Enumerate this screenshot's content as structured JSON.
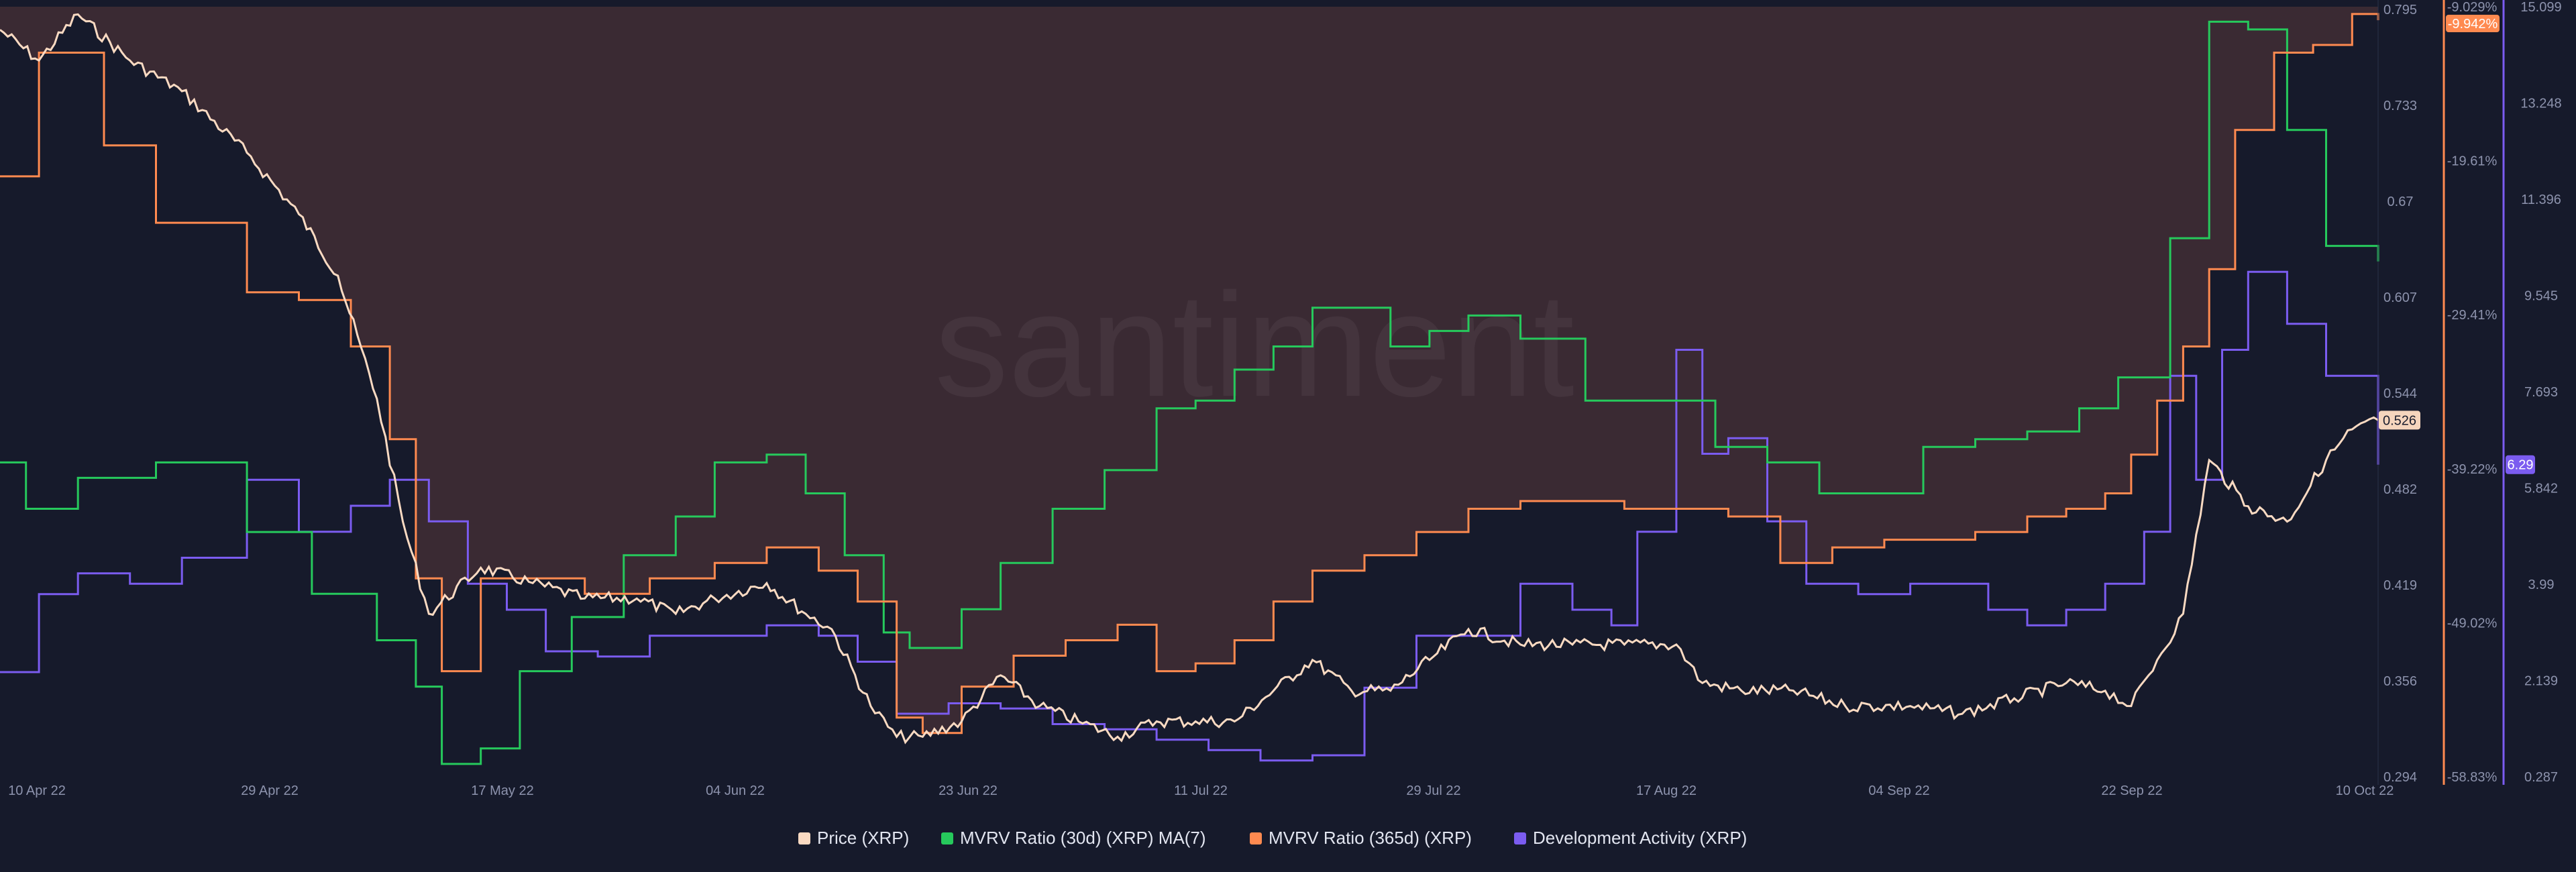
{
  "chart_data": {
    "type": "line",
    "watermark": "santiment",
    "x_dates": [
      "10 Apr 22",
      "29 Apr 22",
      "17 May 22",
      "04 Jun 22",
      "23 Jun 22",
      "11 Jul 22",
      "29 Jul 22",
      "17 Aug 22",
      "04 Sep 22",
      "22 Sep 22",
      "10 Oct 22"
    ],
    "axes": {
      "price": {
        "ticks": [
          "0.795",
          "0.733",
          "0.67",
          "0.607",
          "0.544",
          "0.482",
          "0.419",
          "0.356",
          "0.294"
        ],
        "range": [
          0.294,
          0.795
        ],
        "current": "0.526",
        "color": "#f5d5bd"
      },
      "mvrv": {
        "ticks": [
          "-9.029%",
          "-19.61%",
          "-29.41%",
          "-39.22%",
          "-49.02%",
          "-58.83%"
        ],
        "range": [
          -58.83,
          -9.029
        ],
        "current": "-9.942%",
        "color": "#ff8a50"
      },
      "dev": {
        "ticks": [
          "15.099",
          "13.248",
          "11.396",
          "9.545",
          "7.693",
          "5.842",
          "3.99",
          "2.139",
          "0.287"
        ],
        "range": [
          0.287,
          15.099
        ],
        "current": "6.29",
        "color": "#7b5cf0"
      }
    },
    "series": [
      {
        "name": "Price (XRP)",
        "color": "#fadac2",
        "axis": "price",
        "x": [
          "2022-04-10",
          "2022-04-13",
          "2022-04-16",
          "2022-04-20",
          "2022-04-24",
          "2022-04-29",
          "2022-05-03",
          "2022-05-06",
          "2022-05-09",
          "2022-05-11",
          "2022-05-13",
          "2022-05-17",
          "2022-05-21",
          "2022-05-25",
          "2022-05-29",
          "2022-06-01",
          "2022-06-04",
          "2022-06-08",
          "2022-06-11",
          "2022-06-13",
          "2022-06-16",
          "2022-06-18",
          "2022-06-20",
          "2022-06-23",
          "2022-06-26",
          "2022-06-29",
          "2022-07-02",
          "2022-07-05",
          "2022-07-08",
          "2022-07-11",
          "2022-07-14",
          "2022-07-17",
          "2022-07-20",
          "2022-07-23",
          "2022-07-26",
          "2022-07-29",
          "2022-08-01",
          "2022-08-05",
          "2022-08-09",
          "2022-08-13",
          "2022-08-17",
          "2022-08-19",
          "2022-08-22",
          "2022-08-26",
          "2022-08-30",
          "2022-09-04",
          "2022-09-08",
          "2022-09-12",
          "2022-09-16",
          "2022-09-19",
          "2022-09-21",
          "2022-09-23",
          "2022-09-25",
          "2022-09-27",
          "2022-09-30",
          "2022-10-03",
          "2022-10-06",
          "2022-10-08",
          "2022-10-10"
        ],
        "y": [
          0.78,
          0.76,
          0.79,
          0.76,
          0.74,
          0.7,
          0.66,
          0.62,
          0.54,
          0.46,
          0.4,
          0.43,
          0.42,
          0.41,
          0.41,
          0.4,
          0.41,
          0.42,
          0.4,
          0.39,
          0.34,
          0.32,
          0.32,
          0.33,
          0.36,
          0.34,
          0.33,
          0.32,
          0.33,
          0.33,
          0.33,
          0.35,
          0.37,
          0.35,
          0.35,
          0.37,
          0.39,
          0.38,
          0.38,
          0.38,
          0.38,
          0.355,
          0.35,
          0.35,
          0.34,
          0.34,
          0.335,
          0.345,
          0.355,
          0.35,
          0.34,
          0.37,
          0.4,
          0.5,
          0.47,
          0.46,
          0.5,
          0.52,
          0.526
        ]
      },
      {
        "name": "MVRV Ratio (30d) (XRP) MA(7)",
        "color": "#26c95c",
        "axis": "mvrv",
        "x": [
          "2022-04-10",
          "2022-04-12",
          "2022-04-16",
          "2022-04-22",
          "2022-04-29",
          "2022-05-04",
          "2022-05-09",
          "2022-05-12",
          "2022-05-14",
          "2022-05-17",
          "2022-05-20",
          "2022-05-24",
          "2022-05-28",
          "2022-06-01",
          "2022-06-04",
          "2022-06-08",
          "2022-06-11",
          "2022-06-14",
          "2022-06-17",
          "2022-06-19",
          "2022-06-23",
          "2022-06-26",
          "2022-06-30",
          "2022-07-04",
          "2022-07-08",
          "2022-07-11",
          "2022-07-14",
          "2022-07-17",
          "2022-07-20",
          "2022-07-23",
          "2022-07-26",
          "2022-07-29",
          "2022-08-01",
          "2022-08-05",
          "2022-08-10",
          "2022-08-17",
          "2022-08-20",
          "2022-08-24",
          "2022-08-28",
          "2022-09-01",
          "2022-09-05",
          "2022-09-09",
          "2022-09-13",
          "2022-09-17",
          "2022-09-20",
          "2022-09-24",
          "2022-09-27",
          "2022-09-30",
          "2022-10-03",
          "2022-10-06",
          "2022-10-10"
        ],
        "y": [
          -38.5,
          -41.5,
          -39.5,
          -38.5,
          -43.0,
          -47.0,
          -50.0,
          -53.0,
          -58.0,
          -57.0,
          -52.0,
          -48.5,
          -44.5,
          -42.0,
          -38.5,
          -38.0,
          -40.5,
          -44.5,
          -49.5,
          -50.5,
          -48.0,
          -45.0,
          -41.5,
          -39.0,
          -35.0,
          -34.5,
          -32.5,
          -31.0,
          -28.5,
          -28.5,
          -31.0,
          -30.0,
          -29.0,
          -30.5,
          -34.5,
          -34.5,
          -37.5,
          -38.5,
          -40.5,
          -40.5,
          -37.5,
          -37.0,
          -36.5,
          -35.0,
          -33.0,
          -24.0,
          -10.0,
          -10.5,
          -17.0,
          -24.5,
          -25.5
        ]
      },
      {
        "name": "MVRV Ratio (365d) (XRP)",
        "color": "#ff8a50",
        "axis": "mvrv",
        "x": [
          "2022-04-10",
          "2022-04-13",
          "2022-04-18",
          "2022-04-22",
          "2022-04-29",
          "2022-05-03",
          "2022-05-07",
          "2022-05-10",
          "2022-05-12",
          "2022-05-14",
          "2022-05-17",
          "2022-05-21",
          "2022-05-25",
          "2022-05-30",
          "2022-06-04",
          "2022-06-08",
          "2022-06-12",
          "2022-06-15",
          "2022-06-18",
          "2022-06-20",
          "2022-06-23",
          "2022-06-27",
          "2022-07-01",
          "2022-07-05",
          "2022-07-08",
          "2022-07-11",
          "2022-07-14",
          "2022-07-17",
          "2022-07-20",
          "2022-07-24",
          "2022-07-28",
          "2022-08-01",
          "2022-08-05",
          "2022-08-09",
          "2022-08-13",
          "2022-08-17",
          "2022-08-21",
          "2022-08-25",
          "2022-08-29",
          "2022-09-02",
          "2022-09-05",
          "2022-09-09",
          "2022-09-13",
          "2022-09-16",
          "2022-09-19",
          "2022-09-21",
          "2022-09-23",
          "2022-09-25",
          "2022-09-27",
          "2022-09-29",
          "2022-10-02",
          "2022-10-05",
          "2022-10-08",
          "2022-10-10"
        ],
        "y": [
          -20.0,
          -12.0,
          -18.0,
          -23.0,
          -27.5,
          -28.0,
          -31.0,
          -37.0,
          -46.0,
          -52.0,
          -46.0,
          -46.0,
          -47.0,
          -46.0,
          -45.0,
          -44.0,
          -45.5,
          -47.5,
          -55.0,
          -56.0,
          -53.0,
          -51.0,
          -50.0,
          -49.0,
          -52.0,
          -51.5,
          -50.0,
          -47.5,
          -45.5,
          -44.5,
          -43.0,
          -41.5,
          -41.0,
          -41.0,
          -41.5,
          -41.5,
          -42.0,
          -45.0,
          -44.0,
          -43.5,
          -43.5,
          -43.0,
          -42.0,
          -41.5,
          -40.5,
          -38.0,
          -34.5,
          -31.0,
          -26.0,
          -17.0,
          -12.0,
          -11.5,
          -9.5,
          -9.9
        ]
      },
      {
        "name": "Development Activity (XRP)",
        "color": "#7b5cf0",
        "axis": "dev",
        "x": [
          "2022-04-10",
          "2022-04-13",
          "2022-04-16",
          "2022-04-20",
          "2022-04-24",
          "2022-04-29",
          "2022-05-03",
          "2022-05-07",
          "2022-05-10",
          "2022-05-13",
          "2022-05-16",
          "2022-05-19",
          "2022-05-22",
          "2022-05-26",
          "2022-05-30",
          "2022-06-04",
          "2022-06-08",
          "2022-06-12",
          "2022-06-15",
          "2022-06-18",
          "2022-06-22",
          "2022-06-26",
          "2022-06-30",
          "2022-07-04",
          "2022-07-08",
          "2022-07-12",
          "2022-07-16",
          "2022-07-20",
          "2022-07-24",
          "2022-07-28",
          "2022-08-01",
          "2022-08-05",
          "2022-08-09",
          "2022-08-12",
          "2022-08-14",
          "2022-08-17",
          "2022-08-19",
          "2022-08-21",
          "2022-08-24",
          "2022-08-27",
          "2022-08-31",
          "2022-09-04",
          "2022-09-07",
          "2022-09-10",
          "2022-09-13",
          "2022-09-16",
          "2022-09-19",
          "2022-09-22",
          "2022-09-24",
          "2022-09-26",
          "2022-09-28",
          "2022-09-30",
          "2022-10-03",
          "2022-10-06",
          "2022-10-10"
        ],
        "y": [
          2.3,
          3.8,
          4.2,
          4.0,
          4.5,
          6.0,
          5.0,
          5.5,
          6.0,
          5.2,
          4.0,
          3.5,
          2.7,
          2.6,
          3.0,
          3.0,
          3.2,
          3.0,
          2.5,
          1.5,
          1.7,
          1.6,
          1.3,
          1.2,
          1.0,
          0.8,
          0.6,
          0.7,
          2.0,
          3.0,
          3.0,
          4.0,
          3.5,
          3.2,
          5.0,
          8.5,
          6.5,
          6.8,
          5.2,
          4.0,
          3.8,
          4.0,
          4.0,
          3.5,
          3.2,
          3.5,
          4.0,
          5.0,
          8.0,
          6.0,
          8.5,
          10.0,
          9.0,
          8.0,
          6.29
        ]
      }
    ]
  }
}
